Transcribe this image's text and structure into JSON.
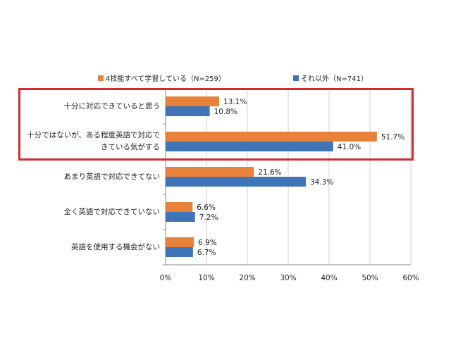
{
  "legend": {
    "series1": "4技能すべて学習している（N=259）",
    "series2": "それ以外（N=741）"
  },
  "colors": {
    "series1": "#E8823A",
    "series2": "#3F74B8",
    "highlight": "#D42A2A"
  },
  "chart_data": {
    "type": "bar",
    "orientation": "horizontal",
    "categories": [
      [
        "十分に対応できていると思う"
      ],
      [
        "十分ではないが、ある程度英語で対応で",
        "きている気がする"
      ],
      [
        "あまり英語で対応できてない"
      ],
      [
        "全く英語で対応できていない"
      ],
      [
        "英語を使用する機会がない"
      ]
    ],
    "series": [
      {
        "name": "4技能すべて学習している（N=259）",
        "values": [
          13.1,
          51.7,
          21.6,
          6.6,
          6.9
        ]
      },
      {
        "name": "それ以外（N=741）",
        "values": [
          10.8,
          41.0,
          34.3,
          7.2,
          6.7
        ]
      }
    ],
    "value_labels": [
      [
        "13.1%",
        "51.7%",
        "21.6%",
        "6.6%",
        "6.9%"
      ],
      [
        "10.8%",
        "41.0%",
        "34.3%",
        "7.2%",
        "6.7%"
      ]
    ],
    "xlim": [
      0,
      60
    ],
    "xticks": [
      "0%",
      "10%",
      "20%",
      "30%",
      "40%",
      "50%",
      "60%"
    ],
    "grid": true,
    "legend_position": "top",
    "highlighted_categories": [
      0,
      1
    ]
  }
}
